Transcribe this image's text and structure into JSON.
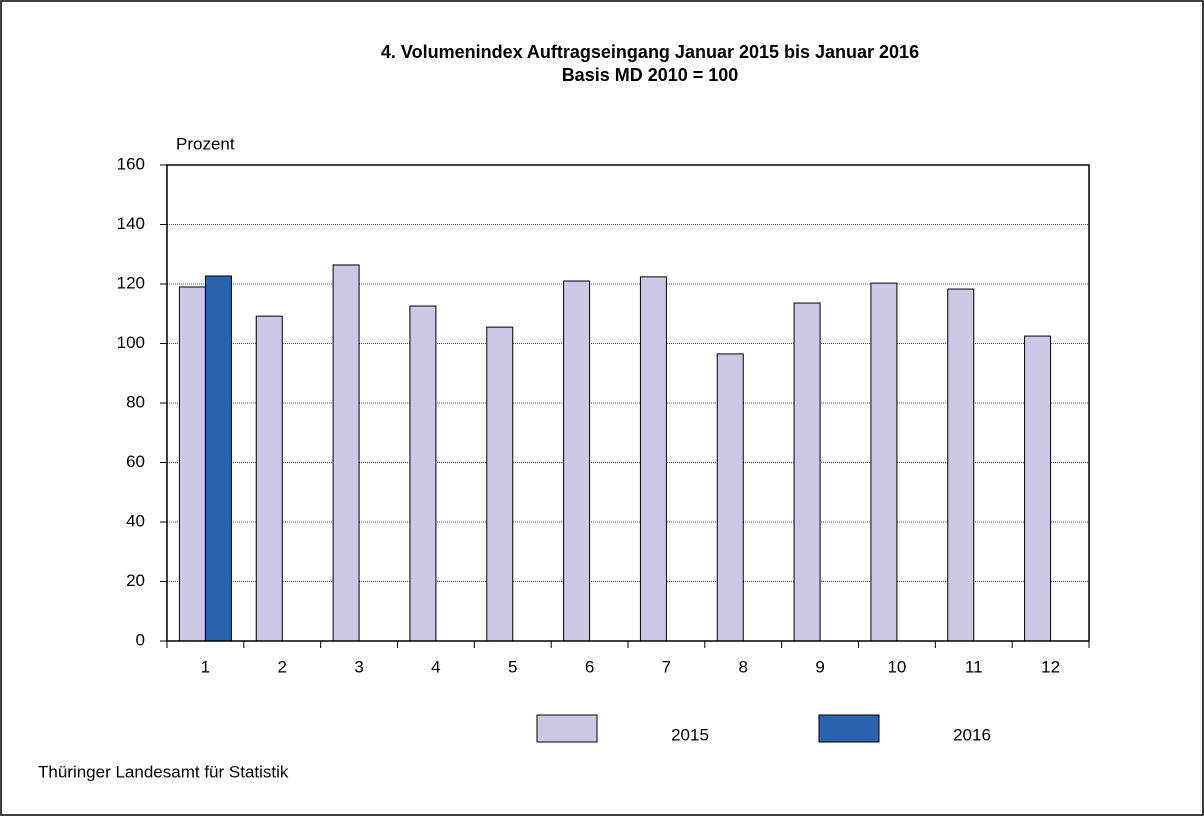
{
  "chart_data": {
    "type": "bar",
    "title": "4. Volumenindex Auftragseingang Januar 2015 bis Januar 2016",
    "subtitle": "Basis MD 2010 = 100",
    "y_label": "Prozent",
    "source": "Thüringer Landesamt für Statistik",
    "categories": [
      "1",
      "2",
      "3",
      "4",
      "5",
      "6",
      "7",
      "8",
      "9",
      "10",
      "11",
      "12"
    ],
    "series": [
      {
        "name": "2015",
        "color": "#ccc9e6",
        "values": [
          119.0,
          109.2,
          126.4,
          112.6,
          105.5,
          121.0,
          122.4,
          96.5,
          113.6,
          120.3,
          118.3,
          102.5
        ]
      },
      {
        "name": "2016",
        "color": "#2a62b0",
        "values": [
          122.7,
          null,
          null,
          null,
          null,
          null,
          null,
          null,
          null,
          null,
          null,
          null
        ]
      }
    ],
    "ylim": [
      0,
      160
    ],
    "yticks": [
      0,
      20,
      40,
      60,
      80,
      100,
      120,
      140,
      160
    ],
    "grid": true,
    "legend": "bottom"
  }
}
